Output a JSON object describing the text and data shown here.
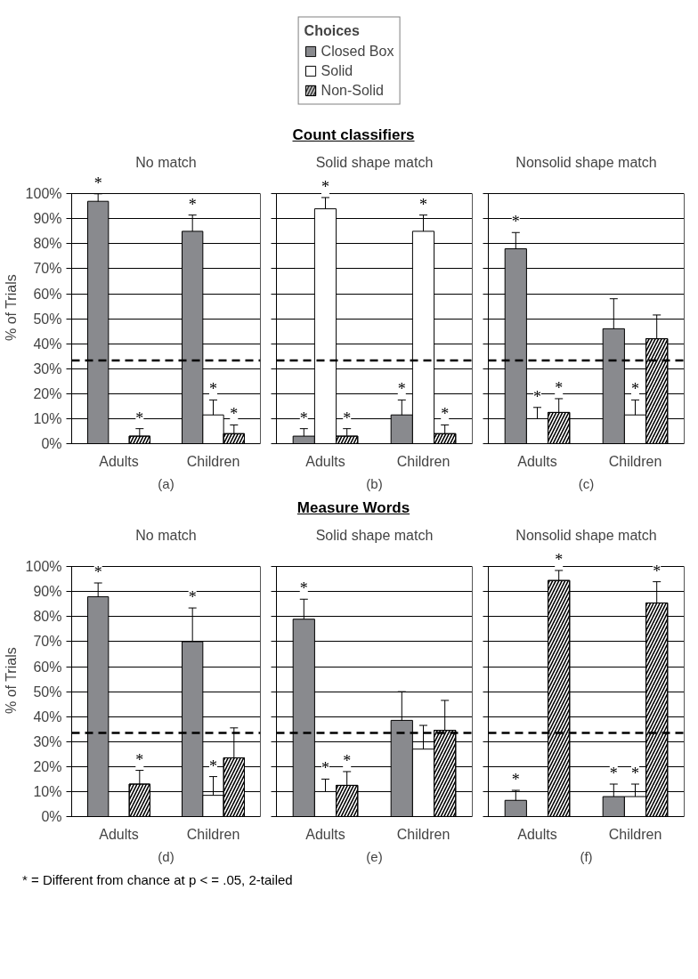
{
  "chart_data": [
    {
      "type": "bar",
      "subtitle": "No match",
      "xlabel": "(a)",
      "ylabel": "% of Trials",
      "legend_title": "Choices",
      "legend": "top",
      "categories": [
        "Adults",
        "Children"
      ],
      "ylim": [
        0,
        100
      ],
      "yticks": [
        {
          "value": 0,
          "label": "0%"
        },
        {
          "value": 10,
          "label": "10%"
        },
        {
          "value": 20,
          "label": "20%"
        },
        {
          "value": 30,
          "label": "30%"
        },
        {
          "value": 40,
          "label": "40%"
        },
        {
          "value": 50,
          "label": "50%"
        },
        {
          "value": 60,
          "label": "60%"
        },
        {
          "value": 70,
          "label": "70%"
        },
        {
          "value": 80,
          "label": "80%"
        },
        {
          "value": 90,
          "label": "90%"
        },
        {
          "value": 100,
          "label": "100%"
        }
      ],
      "grid": "y",
      "ref_lines": [
        {
          "axis": "y",
          "value": 33.3,
          "color": "#000000",
          "line_style": "dashed"
        }
      ],
      "series": [
        {
          "name": "Closed Box",
          "color": "#898a8e",
          "values": [
            97,
            85
          ],
          "errors": [
            3,
            6.5
          ],
          "value_labels": [
            "*",
            "*"
          ]
        },
        {
          "name": "Solid",
          "color": "#ffffff",
          "values": [
            null,
            11.5
          ],
          "errors": [
            null,
            6
          ],
          "value_labels": [
            null,
            "*"
          ]
        },
        {
          "name": "Non-Solid",
          "color": "#ffffff",
          "values": [
            3,
            4
          ],
          "errors": [
            3,
            3.5
          ],
          "value_labels": [
            "*",
            "*"
          ]
        }
      ]
    },
    {
      "type": "bar",
      "title": "Count classifiers",
      "subtitle": "Solid shape match",
      "xlabel": "(b)",
      "tick_labels": "x",
      "categories": [
        "Adults",
        "Children"
      ],
      "ylim": [
        0,
        100
      ],
      "yticks": [
        {
          "value": 0,
          "label": null
        },
        {
          "value": 10,
          "label": null
        },
        {
          "value": 20,
          "label": null
        },
        {
          "value": 30,
          "label": null
        },
        {
          "value": 40,
          "label": null
        },
        {
          "value": 50,
          "label": null
        },
        {
          "value": 60,
          "label": null
        },
        {
          "value": 70,
          "label": null
        },
        {
          "value": 80,
          "label": null
        },
        {
          "value": 90,
          "label": null
        },
        {
          "value": 100,
          "label": null
        }
      ],
      "grid": "y",
      "ref_lines": [
        {
          "axis": "y",
          "value": 33.3,
          "color": "#000000",
          "line_style": "dashed"
        }
      ],
      "series": [
        {
          "color": "#898a8e",
          "values": [
            3,
            11.5
          ],
          "errors": [
            3,
            6
          ],
          "value_labels": [
            "*",
            "*"
          ]
        },
        {
          "color": "#ffffff",
          "values": [
            94,
            85
          ],
          "errors": [
            4.5,
            6.5
          ],
          "value_labels": [
            "*",
            "*"
          ]
        },
        {
          "color": "#ffffff",
          "values": [
            3,
            4
          ],
          "errors": [
            3,
            3.5
          ],
          "value_labels": [
            "*",
            "*"
          ]
        }
      ]
    },
    {
      "type": "bar",
      "subtitle": "Nonsolid shape match",
      "xlabel": "(c)",
      "tick_labels": "x",
      "categories": [
        "Adults",
        "Children"
      ],
      "ylim": [
        0,
        100
      ],
      "yticks": [
        {
          "value": 0,
          "label": null
        },
        {
          "value": 10,
          "label": null
        },
        {
          "value": 20,
          "label": null
        },
        {
          "value": 30,
          "label": null
        },
        {
          "value": 40,
          "label": null
        },
        {
          "value": 50,
          "label": null
        },
        {
          "value": 60,
          "label": null
        },
        {
          "value": 70,
          "label": null
        },
        {
          "value": 80,
          "label": null
        },
        {
          "value": 90,
          "label": null
        },
        {
          "value": 100,
          "label": null
        }
      ],
      "grid": "y",
      "ref_lines": [
        {
          "axis": "y",
          "value": 33.3,
          "color": "#000000",
          "line_style": "dashed"
        }
      ],
      "series": [
        {
          "color": "#898a8e",
          "values": [
            78,
            46
          ],
          "errors": [
            6.5,
            12
          ],
          "value_labels": [
            "*",
            null
          ]
        },
        {
          "color": "#ffffff",
          "values": [
            10,
            11.5
          ],
          "errors": [
            4.5,
            6
          ],
          "value_labels": [
            "*",
            "*"
          ]
        },
        {
          "color": "#ffffff",
          "values": [
            12.5,
            42
          ],
          "errors": [
            5.5,
            9.5
          ],
          "value_labels": [
            "*",
            null
          ]
        }
      ]
    },
    {
      "type": "bar",
      "subtitle": "No match",
      "xlabel": "(d)",
      "ylabel": "% of Trials",
      "categories": [
        "Adults",
        "Children"
      ],
      "ylim": [
        0,
        100
      ],
      "yticks": [
        {
          "value": 0,
          "label": "0%"
        },
        {
          "value": 10,
          "label": "10%"
        },
        {
          "value": 20,
          "label": "20%"
        },
        {
          "value": 30,
          "label": "30%"
        },
        {
          "value": 40,
          "label": "40%"
        },
        {
          "value": 50,
          "label": "50%"
        },
        {
          "value": 60,
          "label": "60%"
        },
        {
          "value": 70,
          "label": "70%"
        },
        {
          "value": 80,
          "label": "80%"
        },
        {
          "value": 90,
          "label": "90%"
        },
        {
          "value": 100,
          "label": "100%"
        }
      ],
      "grid": "y",
      "ref_lines": [
        {
          "axis": "y",
          "value": 33.5,
          "color": "#000000",
          "line_style": "dashed"
        }
      ],
      "series": [
        {
          "color": "#898a8e",
          "values": [
            88,
            70
          ],
          "errors": [
            5.5,
            13.5
          ],
          "value_labels": [
            "*",
            "*"
          ]
        },
        {
          "color": "#ffffff",
          "values": [
            null,
            8.5
          ],
          "errors": [
            null,
            7.5
          ],
          "value_labels": [
            null,
            "*"
          ]
        },
        {
          "color": "#ffffff",
          "values": [
            13,
            23.5
          ],
          "errors": [
            5.5,
            12
          ],
          "value_labels": [
            "*",
            null
          ]
        }
      ]
    },
    {
      "type": "bar",
      "title": "Measure Words",
      "subtitle": "Solid shape match",
      "xlabel": "(e)",
      "tick_labels": "x",
      "categories": [
        "Adults",
        "Children"
      ],
      "ylim": [
        0,
        100
      ],
      "yticks": [
        {
          "value": 0,
          "label": null
        },
        {
          "value": 10,
          "label": null
        },
        {
          "value": 20,
          "label": null
        },
        {
          "value": 30,
          "label": null
        },
        {
          "value": 40,
          "label": null
        },
        {
          "value": 50,
          "label": null
        },
        {
          "value": 60,
          "label": null
        },
        {
          "value": 70,
          "label": null
        },
        {
          "value": 80,
          "label": null
        },
        {
          "value": 90,
          "label": null
        },
        {
          "value": 100,
          "label": null
        }
      ],
      "grid": "y",
      "ref_lines": [
        {
          "axis": "y",
          "value": 33.5,
          "color": "#000000",
          "line_style": "dashed"
        }
      ],
      "series": [
        {
          "color": "#898a8e",
          "values": [
            79,
            38.5
          ],
          "errors": [
            8,
            11.5
          ],
          "value_labels": [
            "*",
            null
          ]
        },
        {
          "color": "#ffffff",
          "values": [
            10,
            27
          ],
          "errors": [
            5,
            9.5
          ],
          "value_labels": [
            "*",
            null
          ]
        },
        {
          "color": "#ffffff",
          "values": [
            12.5,
            34.5
          ],
          "errors": [
            5.5,
            12
          ],
          "value_labels": [
            "*",
            null
          ]
        }
      ]
    },
    {
      "type": "bar",
      "subtitle": "Nonsolid shape match",
      "xlabel": "(f)",
      "tick_labels": "x",
      "categories": [
        "Adults",
        "Children"
      ],
      "ylim": [
        0,
        100
      ],
      "yticks": [
        {
          "value": 0,
          "label": null
        },
        {
          "value": 10,
          "label": null
        },
        {
          "value": 20,
          "label": null
        },
        {
          "value": 30,
          "label": null
        },
        {
          "value": 40,
          "label": null
        },
        {
          "value": 50,
          "label": null
        },
        {
          "value": 60,
          "label": null
        },
        {
          "value": 70,
          "label": null
        },
        {
          "value": 80,
          "label": null
        },
        {
          "value": 90,
          "label": null
        },
        {
          "value": 100,
          "label": null
        }
      ],
      "grid": "y",
      "ref_lines": [
        {
          "axis": "y",
          "value": 33.5,
          "color": "#000000",
          "line_style": "dashed"
        }
      ],
      "annotations": [
        "* = Different from chance at p < = .05, 2-tailed"
      ],
      "series": [
        {
          "color": "#898a8e",
          "values": [
            6.5,
            8
          ],
          "errors": [
            4,
            5
          ],
          "value_labels": [
            "*",
            "*"
          ]
        },
        {
          "color": "#ffffff",
          "values": [
            null,
            8
          ],
          "errors": [
            null,
            5
          ],
          "value_labels": [
            null,
            "*"
          ]
        },
        {
          "color": "#ffffff",
          "values": [
            94.5,
            85.5
          ],
          "errors": [
            4,
            8.5
          ],
          "value_labels": [
            "*",
            "*"
          ]
        }
      ]
    }
  ]
}
